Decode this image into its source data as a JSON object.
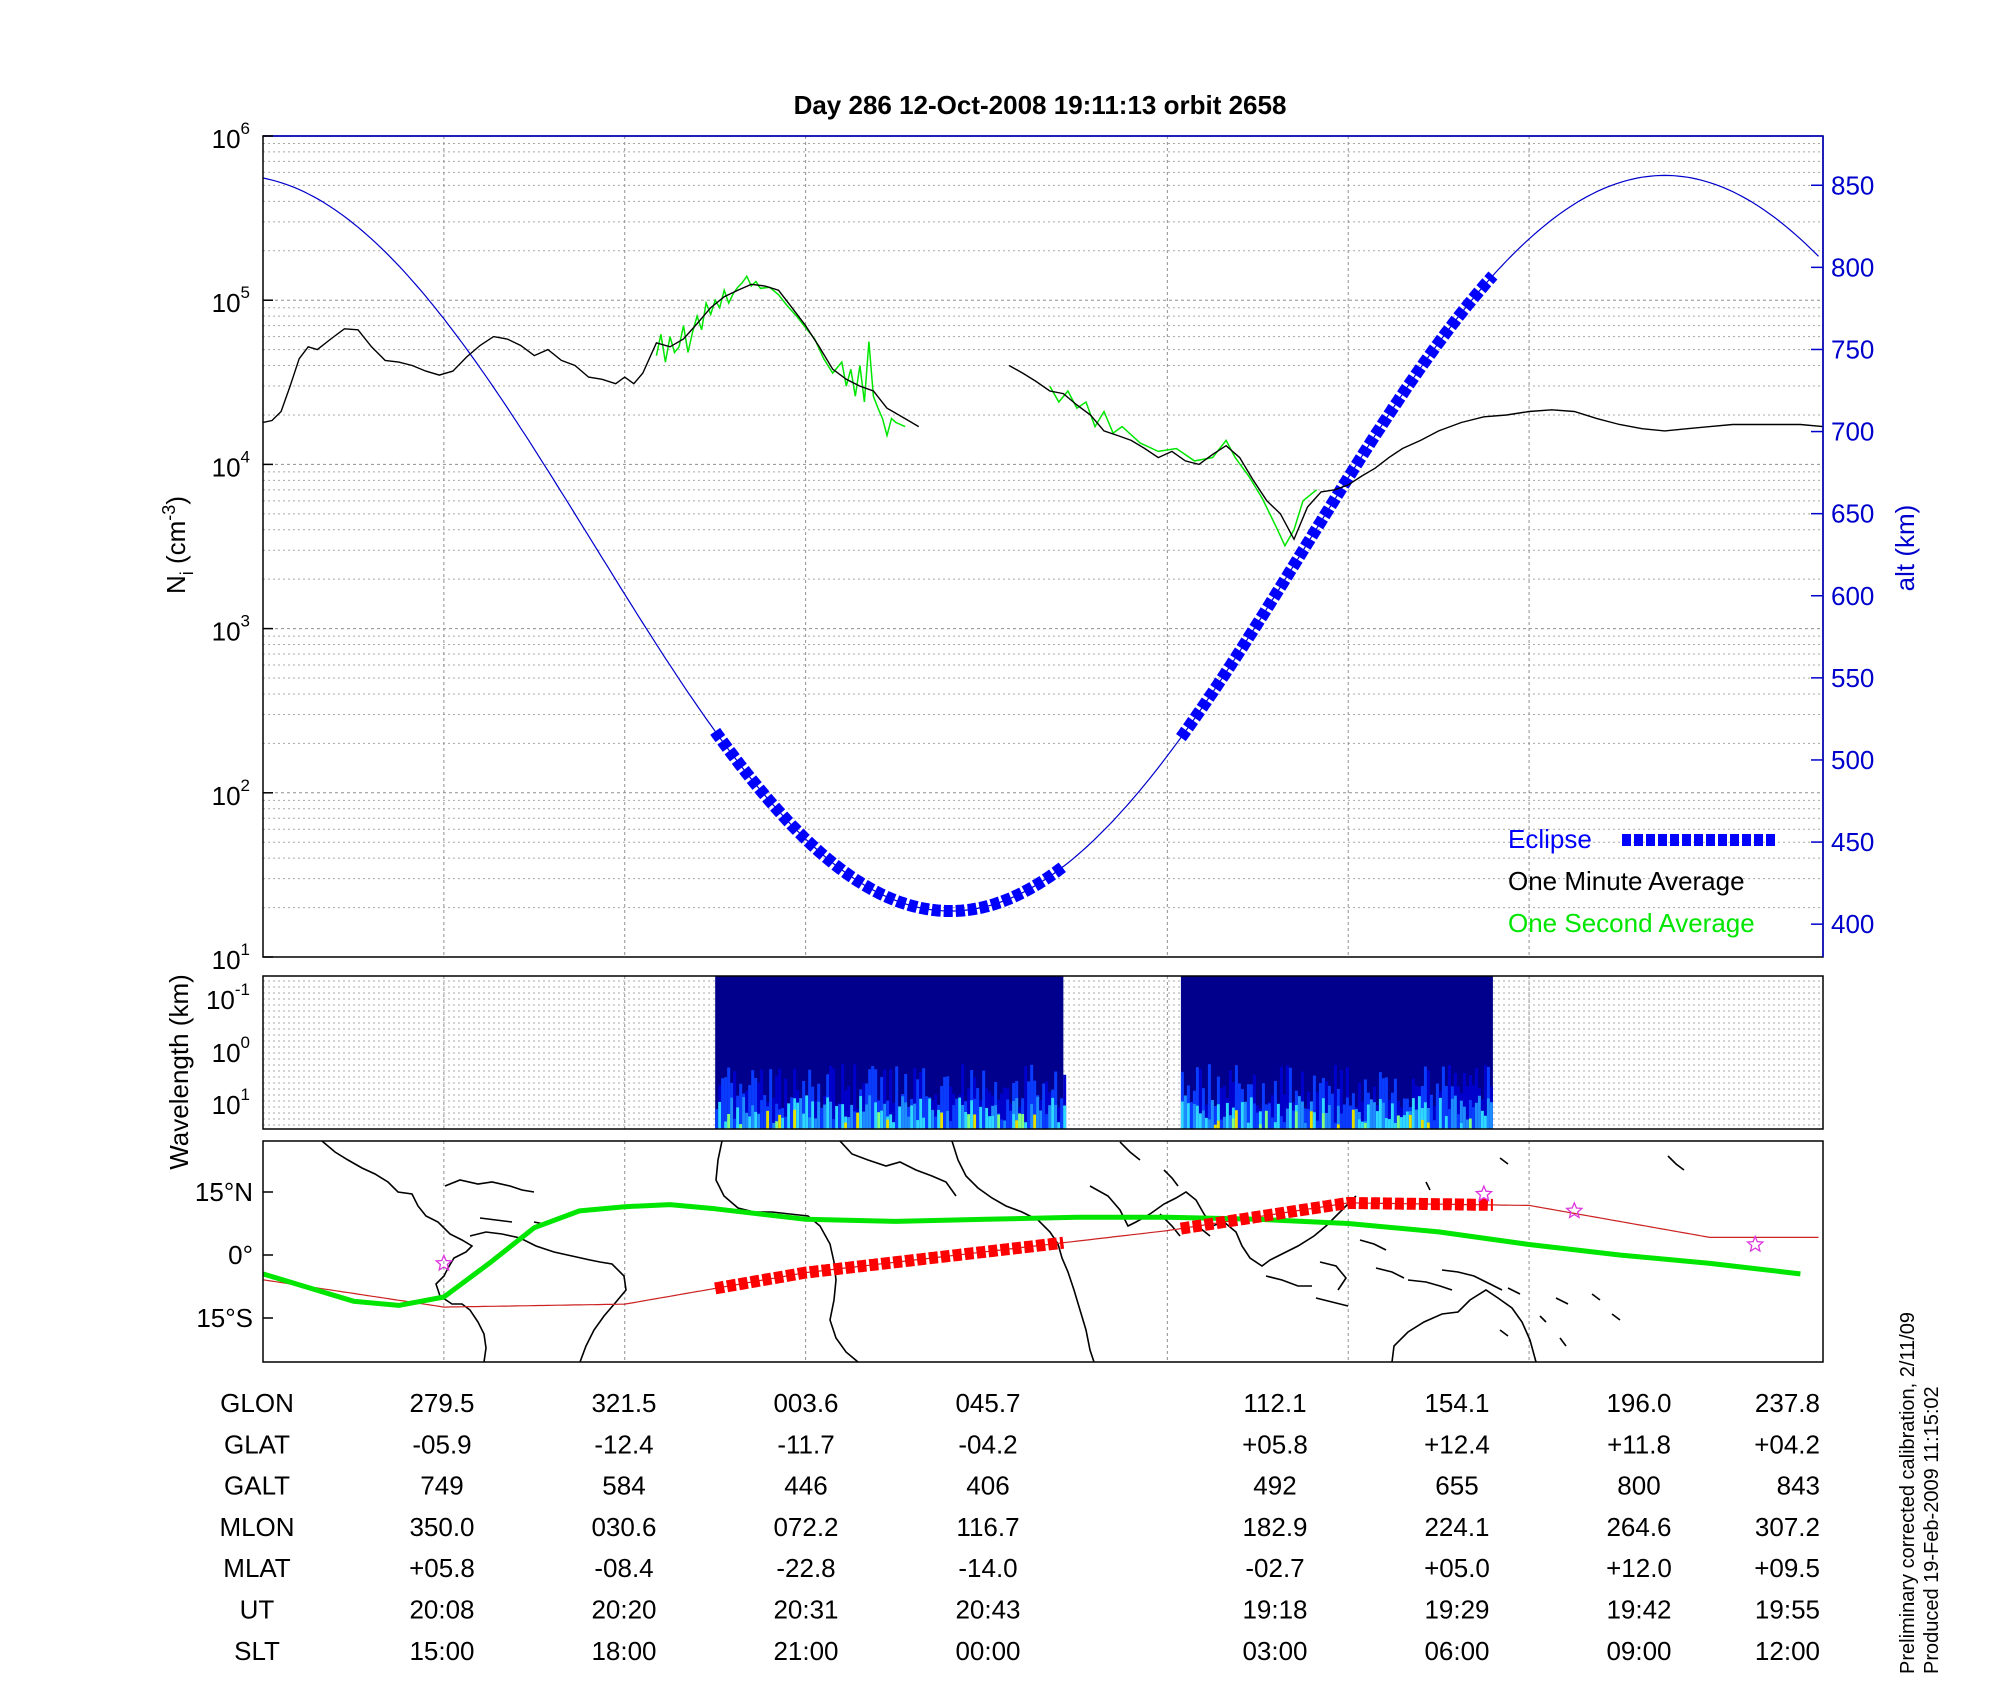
{
  "chart_data": [
    {
      "type": "line",
      "title": "Day 286  12-Oct-2008 19:11:13   orbit 2658",
      "ylabel": "N",
      "ylabel_sub": "i",
      "ylabel_unit_pre": " (cm",
      "ylabel_unit_sup": "-3",
      "ylabel_unit_post": ")",
      "y2label": "alt (km)",
      "y_scale": "log",
      "ylim": [
        10,
        1000000
      ],
      "y_ticks": [
        {
          "base": "10",
          "exp": "1",
          "value": 10
        },
        {
          "base": "10",
          "exp": "2",
          "value": 100
        },
        {
          "base": "10",
          "exp": "3",
          "value": 1000
        },
        {
          "base": "10",
          "exp": "4",
          "value": 10000
        },
        {
          "base": "10",
          "exp": "5",
          "value": 100000
        },
        {
          "base": "10",
          "exp": "6",
          "value": 1000000
        }
      ],
      "y2lim": [
        380,
        880
      ],
      "y2_ticks": [
        "400",
        "450",
        "500",
        "550",
        "600",
        "650",
        "700",
        "750",
        "800",
        "850"
      ],
      "grid": true,
      "legend_position": "bottom-right",
      "legend": [
        {
          "label": "Eclipse",
          "color": "#0000ff",
          "style": "dashed-thick"
        },
        {
          "label": "One Minute Average",
          "color": "#000000",
          "style": "line"
        },
        {
          "label": "One Second Average",
          "color": "#00e600",
          "style": "line"
        }
      ],
      "series": [
        {
          "name": "One Minute Average",
          "color": "#000000",
          "segments": [
            [
              [
                0,
                18000
              ],
              [
                0.2,
                18500
              ],
              [
                0.4,
                21000
              ],
              [
                0.6,
                30000
              ],
              [
                0.8,
                44000
              ],
              [
                1.0,
                52000
              ],
              [
                1.2,
                50000
              ],
              [
                1.5,
                58000
              ],
              [
                1.8,
                67000
              ],
              [
                2.1,
                66000
              ],
              [
                2.4,
                52000
              ],
              [
                2.7,
                43000
              ],
              [
                3.0,
                42000
              ],
              [
                3.3,
                40000
              ],
              [
                3.6,
                37000
              ],
              [
                3.9,
                35000
              ],
              [
                4.2,
                37000
              ],
              [
                4.5,
                45000
              ],
              [
                4.8,
                53000
              ],
              [
                5.1,
                60000
              ],
              [
                5.4,
                58000
              ],
              [
                5.7,
                53000
              ],
              [
                6.0,
                46000
              ],
              [
                6.3,
                50000
              ],
              [
                6.6,
                43000
              ],
              [
                6.9,
                40000
              ],
              [
                7.2,
                34000
              ],
              [
                7.5,
                33000
              ],
              [
                7.8,
                31000
              ],
              [
                8.0,
                34000
              ],
              [
                8.2,
                31000
              ],
              [
                8.4,
                36000
              ],
              [
                8.7,
                55000
              ],
              [
                9.0,
                52000
              ],
              [
                9.3,
                58000
              ],
              [
                9.6,
                72000
              ],
              [
                9.9,
                90000
              ],
              [
                10.2,
                105000
              ],
              [
                10.5,
                115000
              ],
              [
                10.8,
                125000
              ],
              [
                11.1,
                122000
              ],
              [
                11.4,
                115000
              ],
              [
                11.7,
                90000
              ],
              [
                12.0,
                70000
              ],
              [
                12.3,
                52000
              ],
              [
                12.6,
                38000
              ],
              [
                12.9,
                33000
              ],
              [
                13.2,
                30000
              ],
              [
                13.5,
                28000
              ],
              [
                13.8,
                22000
              ],
              [
                14.2,
                19000
              ],
              [
                14.5,
                17000
              ]
            ],
            [
              [
                16.5,
                40000
              ],
              [
                16.8,
                36000
              ],
              [
                17.1,
                32000
              ],
              [
                17.4,
                28000
              ],
              [
                17.7,
                27000
              ],
              [
                18.0,
                23000
              ],
              [
                18.3,
                20000
              ],
              [
                18.6,
                16000
              ],
              [
                18.9,
                15000
              ],
              [
                19.2,
                14000
              ],
              [
                19.5,
                12500
              ],
              [
                19.8,
                11000
              ],
              [
                20.1,
                12000
              ],
              [
                20.4,
                10500
              ],
              [
                20.7,
                10000
              ],
              [
                21.0,
                11500
              ],
              [
                21.3,
                13000
              ],
              [
                21.6,
                11000
              ],
              [
                21.9,
                8000
              ],
              [
                22.2,
                6000
              ],
              [
                22.5,
                5000
              ],
              [
                22.8,
                3500
              ],
              [
                23.1,
                5500
              ],
              [
                23.4,
                6800
              ],
              [
                23.7,
                7000
              ],
              [
                24.0,
                7500
              ],
              [
                24.3,
                8500
              ],
              [
                24.6,
                9500
              ],
              [
                24.9,
                11000
              ],
              [
                25.2,
                12500
              ],
              [
                25.6,
                14000
              ],
              [
                26.0,
                16000
              ],
              [
                26.5,
                18000
              ],
              [
                27.0,
                19500
              ],
              [
                27.5,
                20000
              ],
              [
                28.0,
                21000
              ],
              [
                28.5,
                21500
              ],
              [
                29.0,
                21000
              ],
              [
                29.5,
                19000
              ],
              [
                30.0,
                17500
              ],
              [
                30.5,
                16500
              ],
              [
                31.0,
                16000
              ],
              [
                31.5,
                16500
              ],
              [
                32.0,
                17000
              ],
              [
                32.5,
                17500
              ],
              [
                33.0,
                17500
              ],
              [
                33.5,
                17500
              ],
              [
                34.0,
                17500
              ],
              [
                34.5,
                17000
              ]
            ]
          ]
        },
        {
          "name": "One Second Average",
          "color": "#00e600",
          "segments": [
            [
              [
                8.7,
                46000
              ],
              [
                8.8,
                62000
              ],
              [
                8.9,
                42000
              ],
              [
                9.0,
                60000
              ],
              [
                9.1,
                48000
              ],
              [
                9.2,
                52000
              ],
              [
                9.3,
                70000
              ],
              [
                9.4,
                48000
              ],
              [
                9.5,
                64000
              ],
              [
                9.6,
                80000
              ],
              [
                9.7,
                66000
              ],
              [
                9.8,
                96000
              ],
              [
                9.9,
                82000
              ],
              [
                10.0,
                100000
              ],
              [
                10.1,
                90000
              ],
              [
                10.2,
                115000
              ],
              [
                10.3,
                96000
              ],
              [
                10.4,
                110000
              ],
              [
                10.5,
                120000
              ],
              [
                10.6,
                128000
              ],
              [
                10.7,
                140000
              ],
              [
                10.8,
                122000
              ],
              [
                10.9,
                130000
              ],
              [
                11.0,
                118000
              ],
              [
                11.2,
                120000
              ],
              [
                11.4,
                108000
              ],
              [
                11.6,
                92000
              ],
              [
                11.8,
                80000
              ],
              [
                12.0,
                68000
              ],
              [
                12.2,
                58000
              ],
              [
                12.4,
                44000
              ],
              [
                12.6,
                36000
              ],
              [
                12.8,
                42000
              ],
              [
                12.9,
                30000
              ],
              [
                13.0,
                38000
              ],
              [
                13.1,
                26000
              ],
              [
                13.2,
                40000
              ],
              [
                13.3,
                24000
              ],
              [
                13.4,
                56000
              ],
              [
                13.5,
                26000
              ],
              [
                13.6,
                22000
              ],
              [
                13.7,
                19000
              ],
              [
                13.8,
                15000
              ],
              [
                13.9,
                19000
              ],
              [
                14.0,
                18000
              ],
              [
                14.2,
                17000
              ]
            ],
            [
              [
                17.4,
                30000
              ],
              [
                17.6,
                24000
              ],
              [
                17.8,
                28000
              ],
              [
                18.0,
                22000
              ],
              [
                18.2,
                24000
              ],
              [
                18.4,
                17000
              ],
              [
                18.6,
                21000
              ],
              [
                18.8,
                15500
              ],
              [
                19.0,
                17000
              ],
              [
                19.4,
                13500
              ],
              [
                19.8,
                12000
              ],
              [
                20.2,
                12500
              ],
              [
                20.6,
                10500
              ],
              [
                21.0,
                11000
              ],
              [
                21.3,
                14000
              ],
              [
                21.5,
                11000
              ],
              [
                21.8,
                8500
              ],
              [
                22.1,
                6200
              ],
              [
                22.4,
                4200
              ],
              [
                22.6,
                3200
              ],
              [
                22.8,
                4000
              ],
              [
                23.0,
                6000
              ],
              [
                23.3,
                7000
              ]
            ]
          ]
        }
      ],
      "altitude_series": {
        "name": "alt (km)",
        "color": "#0000cc",
        "model": {
          "center_x": 15.2,
          "amplitude": 224,
          "mean": 632,
          "period": 31.6
        }
      },
      "eclipse_segments": [
        [
          10,
          17.7
        ],
        [
          20.3,
          27.2
        ]
      ]
    },
    {
      "type": "heatmap",
      "ylabel": "Wavelength (km)",
      "y_ticks": [
        {
          "base": "10",
          "exp": "-1"
        },
        {
          "base": "10",
          "exp": "0"
        },
        {
          "base": "10",
          "exp": "1"
        }
      ],
      "colorscale": [
        "#00008c",
        "#0000cc",
        "#0a3cff",
        "#1e8cff",
        "#2ed8ff",
        "#80ff80",
        "#e6e000"
      ],
      "blocks": [
        [
          10,
          17.7
        ],
        [
          20.3,
          27.2
        ]
      ]
    },
    {
      "type": "map",
      "y_ticks": [
        {
          "label": "15°N",
          "lat": 15
        },
        {
          "label": "0°",
          "lat": 0
        },
        {
          "label": "15°S",
          "lat": -15
        }
      ],
      "ground_track_lat": [
        [
          0,
          -5.9
        ],
        [
          4,
          -12.4
        ],
        [
          8,
          -11.7
        ],
        [
          12,
          -4.2
        ],
        [
          20,
          5.8
        ],
        [
          24,
          12.4
        ],
        [
          28,
          11.8
        ],
        [
          32,
          4.2
        ]
      ],
      "dip_equator": [
        [
          0,
          -4.5
        ],
        [
          2,
          -11
        ],
        [
          3,
          -12
        ],
        [
          4,
          -10
        ],
        [
          5,
          -2
        ],
        [
          6,
          6.5
        ],
        [
          7,
          10.5
        ],
        [
          8,
          11.5
        ],
        [
          9,
          12
        ],
        [
          10,
          11
        ],
        [
          12,
          8.5
        ],
        [
          14,
          8
        ],
        [
          16,
          8.5
        ],
        [
          18,
          9
        ],
        [
          19,
          9
        ],
        [
          20,
          9
        ],
        [
          22,
          8.5
        ],
        [
          24,
          7.5
        ],
        [
          26,
          5.5
        ],
        [
          28,
          2.5
        ],
        [
          30,
          0
        ],
        [
          32,
          -2
        ],
        [
          34,
          -4.5
        ]
      ],
      "stars_lat": [
        [
          4,
          -2
        ],
        [
          27,
          14.5
        ],
        [
          29,
          10.5
        ],
        [
          33,
          2.5
        ]
      ],
      "colors": {
        "track": "#cc2222",
        "dip": "#00e600",
        "eclipse": "#ff0000",
        "star": "#dd33dd"
      }
    }
  ],
  "table": {
    "rows": [
      {
        "label": "GLON",
        "values": [
          "279.5",
          "321.5",
          "003.6",
          "045.7",
          "112.1",
          "154.1",
          "196.0",
          "237.8"
        ]
      },
      {
        "label": "GLAT",
        "values": [
          "-05.9",
          "-12.4",
          "-11.7",
          "-04.2",
          "+05.8",
          "+12.4",
          "+11.8",
          "+04.2"
        ]
      },
      {
        "label": "GALT",
        "values": [
          "749",
          "584",
          "446",
          "406",
          "492",
          "655",
          "800",
          "843"
        ]
      },
      {
        "label": "MLON",
        "values": [
          "350.0",
          "030.6",
          "072.2",
          "116.7",
          "182.9",
          "224.1",
          "264.6",
          "307.2"
        ]
      },
      {
        "label": "MLAT",
        "values": [
          "+05.8",
          "-08.4",
          "-22.8",
          "-14.0",
          "-02.7",
          "+05.0",
          "+12.0",
          "+09.5"
        ]
      },
      {
        "label": "UT",
        "values": [
          "20:08",
          "20:20",
          "20:31",
          "20:43",
          "19:18",
          "19:29",
          "19:42",
          "19:55"
        ]
      },
      {
        "label": "SLT",
        "values": [
          "15:00",
          "18:00",
          "21:00",
          "00:00",
          "03:00",
          "06:00",
          "09:00",
          "12:00"
        ]
      }
    ]
  },
  "footer": {
    "calibration_note": "Preliminary corrected calibration, 2/11/09",
    "produced_note": "Produced 19-Feb-2009 11:15:02"
  }
}
